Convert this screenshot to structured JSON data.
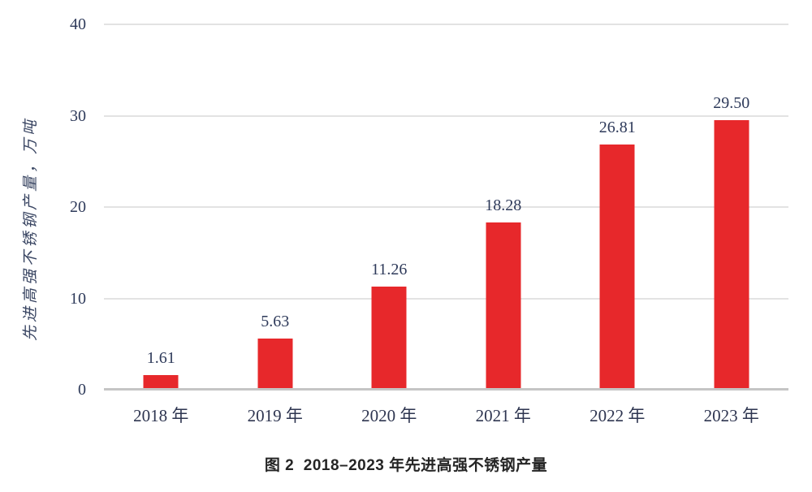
{
  "figure": {
    "caption": "图 2  2018–2023 年先进高强不锈钢产量"
  },
  "chart_data": {
    "type": "bar",
    "title": "图 2 2018–2023 年先进高强不锈钢产量",
    "categories": [
      "2018 年",
      "2019 年",
      "2020 年",
      "2021 年",
      "2022 年",
      "2023 年"
    ],
    "values": [
      1.61,
      5.63,
      11.26,
      18.28,
      26.81,
      29.5
    ],
    "value_labels": [
      "1.61",
      "5.63",
      "11.26",
      "18.28",
      "26.81",
      "29.50"
    ],
    "xlabel": "",
    "ylabel": "先进高强不锈钢产量，万吨",
    "yticks": [
      0,
      10,
      20,
      30,
      40
    ],
    "ylim": [
      0,
      40
    ],
    "grid": true,
    "legend": "none",
    "bar_color": "#e7282b",
    "grid_color": "#e3e3e3",
    "axis_line_color": "#c5c5c5",
    "text_color": "#2e3a5a"
  }
}
